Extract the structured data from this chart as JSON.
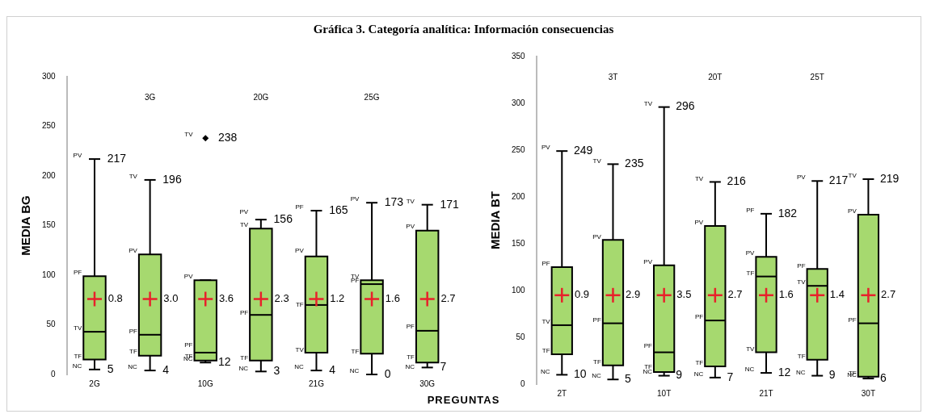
{
  "chart_data": [
    {
      "type": "box",
      "title": "Gráfica 3. Categoría analítica: Información consecuencias",
      "xlabel": "PREGUNTAS",
      "ylabel": "MEDIA BG",
      "categories": [
        "2G",
        "3G",
        "10G",
        "20G",
        "21G",
        "25G",
        "30G"
      ],
      "series": [
        {
          "color": "#a6d96f",
          "boxes": [
            {
              "low": 5,
              "q1": 15,
              "median": 43,
              "q3": 99,
              "high": 217,
              "mean": 76
            },
            {
              "low": 4,
              "q1": 19,
              "median": 40,
              "q3": 121,
              "high": 196,
              "mean": 76
            },
            {
              "low": 12,
              "q1": 14,
              "median": 22,
              "q3": 95,
              "high": 95,
              "mean": 76
            },
            {
              "low": 3,
              "q1": 14,
              "median": 60,
              "q3": 147,
              "high": 156,
              "mean": 76
            },
            {
              "low": 4,
              "q1": 22,
              "median": 70,
              "q3": 119,
              "high": 165,
              "mean": 76
            },
            {
              "low": 0,
              "q1": 21,
              "median": 91,
              "q3": 95,
              "high": 173,
              "mean": 76
            },
            {
              "low": 7,
              "q1": 12,
              "median": 44,
              "q3": 145,
              "high": 171,
              "mean": 76
            }
          ]
        },
        {
          "type": "scatter",
          "x": [
            "10G"
          ],
          "values": [
            238
          ],
          "color": "#000000",
          "marker": "diamond"
        }
      ],
      "ylim": [
        0,
        300
      ],
      "yticks": [
        0,
        50,
        100,
        150,
        200,
        250,
        300
      ],
      "grid": false,
      "legend": false,
      "annotations": [
        {
          "text": "PV",
          "x": "2G",
          "y": 217
        },
        {
          "text": "217",
          "x": "2G",
          "y": 217
        },
        {
          "text": "PF",
          "x": "2G",
          "y": 99
        },
        {
          "text": "TV",
          "x": "2G",
          "y": 43
        },
        {
          "text": "TF",
          "x": "2G",
          "y": 15
        },
        {
          "text": "NC",
          "x": "2G",
          "y": 5
        },
        {
          "text": "5",
          "x": "2G",
          "y": 5
        },
        "0.8",
        {
          "text": "TV",
          "x": "3G",
          "y": 196
        },
        {
          "text": "196",
          "x": "3G",
          "y": 196
        },
        {
          "text": "PV",
          "x": "3G",
          "y": 121
        },
        {
          "text": "PF",
          "x": "3G",
          "y": 40
        },
        {
          "text": "TF",
          "x": "3G",
          "y": 20
        },
        {
          "text": "NC",
          "x": "3G",
          "y": 4
        },
        {
          "text": "4",
          "x": "3G",
          "y": 4
        },
        "3.0",
        {
          "text": "TV",
          "x": "10G",
          "y": 238
        },
        {
          "text": "238",
          "x": "10G",
          "y": 238
        },
        {
          "text": "PV",
          "x": "10G",
          "y": 95
        },
        {
          "text": "PF",
          "x": "10G",
          "y": 26
        },
        {
          "text": "TF",
          "x": "10G",
          "y": 15
        },
        {
          "text": "NC",
          "x": "10G",
          "y": 12
        },
        {
          "text": "12",
          "x": "10G",
          "y": 12
        },
        "3.6",
        {
          "text": "PV",
          "x": "20G",
          "y": 160
        },
        {
          "text": "TV",
          "x": "20G",
          "y": 147
        },
        {
          "text": "156",
          "x": "20G",
          "y": 156
        },
        {
          "text": "PF",
          "x": "20G",
          "y": 59
        },
        {
          "text": "TF",
          "x": "20G",
          "y": 13
        },
        {
          "text": "NC",
          "x": "20G",
          "y": 3
        },
        {
          "text": "3",
          "x": "20G",
          "y": 3
        },
        "2.3",
        {
          "text": "PF",
          "x": "21G",
          "y": 165
        },
        {
          "text": "165",
          "x": "21G",
          "y": 165
        },
        {
          "text": "PV",
          "x": "21G",
          "y": 121
        },
        {
          "text": "TF",
          "x": "21G",
          "y": 67
        },
        {
          "text": "TV",
          "x": "21G",
          "y": 21
        },
        {
          "text": "NC",
          "x": "21G",
          "y": 4
        },
        {
          "text": "4",
          "x": "21G",
          "y": 4
        },
        "1.2",
        {
          "text": "PV",
          "x": "25G",
          "y": 173
        },
        {
          "text": "173",
          "x": "25G",
          "y": 173
        },
        {
          "text": "TV",
          "x": "25G",
          "y": 95
        },
        {
          "text": "PF",
          "x": "25G",
          "y": 91
        },
        {
          "text": "TF",
          "x": "25G",
          "y": 20
        },
        {
          "text": "NC",
          "x": "25G",
          "y": 0
        },
        {
          "text": "0",
          "x": "25G",
          "y": 0
        },
        "1.6",
        {
          "text": "TV",
          "x": "30G",
          "y": 171
        },
        {
          "text": "171",
          "x": "30G",
          "y": 171
        },
        {
          "text": "PV",
          "x": "30G",
          "y": 146
        },
        {
          "text": "PF",
          "x": "30G",
          "y": 45
        },
        {
          "text": "TF",
          "x": "30G",
          "y": 14
        },
        {
          "text": "NC",
          "x": "30G",
          "y": 4
        },
        {
          "text": "7",
          "x": "30G",
          "y": 7
        },
        "2.7"
      ]
    },
    {
      "type": "box",
      "ylabel": "MEDIA BT",
      "categories": [
        "2T",
        "3T",
        "10T",
        "20T",
        "21T",
        "25T",
        "30T"
      ],
      "series": [
        {
          "color": "#a6d96f",
          "boxes": [
            {
              "low": 10,
              "q1": 32,
              "median": 63,
              "q3": 125,
              "high": 249,
              "mean": 95
            },
            {
              "low": 5,
              "q1": 20,
              "median": 65,
              "q3": 154,
              "high": 235,
              "mean": 95
            },
            {
              "low": 9,
              "q1": 13,
              "median": 34,
              "q3": 127,
              "high": 296,
              "mean": 95
            },
            {
              "low": 7,
              "q1": 19,
              "median": 68,
              "q3": 169,
              "high": 216,
              "mean": 95
            },
            {
              "low": 12,
              "q1": 34,
              "median": 115,
              "q3": 136,
              "high": 182,
              "mean": 95
            },
            {
              "low": 9,
              "q1": 26,
              "median": 105,
              "q3": 123,
              "high": 217,
              "mean": 95
            },
            {
              "low": 6,
              "q1": 8,
              "median": 65,
              "q3": 181,
              "high": 219,
              "mean": 95
            }
          ]
        }
      ],
      "ylim": [
        0,
        350
      ],
      "yticks": [
        0,
        50,
        100,
        150,
        200,
        250,
        300,
        350
      ],
      "grid": false,
      "legend": false,
      "annotations": [
        {
          "text": "PV",
          "x": "2T",
          "y": 249
        },
        {
          "text": "249",
          "x": "2T",
          "y": 249
        },
        {
          "text": "PF",
          "x": "2T",
          "y": 125
        },
        {
          "text": "TV",
          "x": "2T",
          "y": 63
        },
        {
          "text": "TF",
          "x": "2T",
          "y": 32
        },
        {
          "text": "NC",
          "x": "2T",
          "y": 10
        },
        {
          "text": "10",
          "x": "2T",
          "y": 10
        },
        "0.9",
        {
          "text": "TV",
          "x": "3T",
          "y": 235
        },
        {
          "text": "235",
          "x": "3T",
          "y": 235
        },
        {
          "text": "PV",
          "x": "3T",
          "y": 154
        },
        {
          "text": "PF",
          "x": "3T",
          "y": 65
        },
        {
          "text": "TF",
          "x": "3T",
          "y": 20
        },
        {
          "text": "NC",
          "x": "3T",
          "y": 5
        },
        {
          "text": "5",
          "x": "3T",
          "y": 5
        },
        "2.9",
        {
          "text": "TV",
          "x": "10T",
          "y": 296
        },
        {
          "text": "296",
          "x": "10T",
          "y": 296
        },
        {
          "text": "PV",
          "x": "10T",
          "y": 127
        },
        {
          "text": "PF",
          "x": "10T",
          "y": 37
        },
        {
          "text": "TF",
          "x": "10T",
          "y": 15
        },
        {
          "text": "NC",
          "x": "10T",
          "y": 10
        },
        {
          "text": "9",
          "x": "10T",
          "y": 9
        },
        "3.5",
        {
          "text": "TV",
          "x": "20T",
          "y": 216
        },
        {
          "text": "216",
          "x": "20T",
          "y": 216
        },
        {
          "text": "PV",
          "x": "20T",
          "y": 169
        },
        {
          "text": "PF",
          "x": "20T",
          "y": 68
        },
        {
          "text": "TF",
          "x": "20T",
          "y": 19
        },
        {
          "text": "NC",
          "x": "20T",
          "y": 7
        },
        {
          "text": "7",
          "x": "20T",
          "y": 7
        },
        "2.7",
        {
          "text": "PF",
          "x": "21T",
          "y": 182
        },
        {
          "text": "182",
          "x": "21T",
          "y": 182
        },
        {
          "text": "PV",
          "x": "21T",
          "y": 136
        },
        {
          "text": "TF",
          "x": "21T",
          "y": 115
        },
        {
          "text": "TV",
          "x": "21T",
          "y": 34
        },
        {
          "text": "NC",
          "x": "21T",
          "y": 12
        },
        {
          "text": "12",
          "x": "21T",
          "y": 12
        },
        "1.6",
        {
          "text": "PV",
          "x": "25T",
          "y": 217
        },
        {
          "text": "217",
          "x": "25T",
          "y": 217
        },
        {
          "text": "PF",
          "x": "25T",
          "y": 123
        },
        {
          "text": "TV",
          "x": "25T",
          "y": 105
        },
        {
          "text": "TF",
          "x": "25T",
          "y": 26
        },
        {
          "text": "NC",
          "x": "25T",
          "y": 9
        },
        {
          "text": "9",
          "x": "25T",
          "y": 9
        },
        "1.4",
        {
          "text": "TV",
          "x": "30T",
          "y": 219
        },
        {
          "text": "219",
          "x": "30T",
          "y": 219
        },
        {
          "text": "PV",
          "x": "30T",
          "y": 181
        },
        {
          "text": "PF",
          "x": "30T",
          "y": 65
        },
        {
          "text": "TF",
          "x": "30T",
          "y": 8
        },
        {
          "text": "NC",
          "x": "30T",
          "y": 6
        },
        {
          "text": "6",
          "x": "30T",
          "y": 6
        },
        "2.7"
      ]
    }
  ]
}
